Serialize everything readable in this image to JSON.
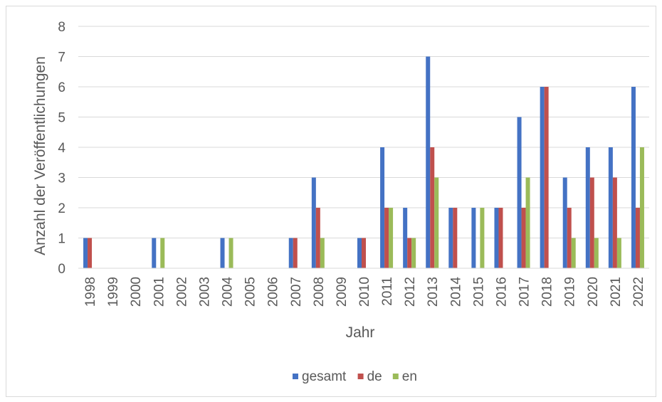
{
  "chart_data": {
    "type": "bar",
    "title": "",
    "xlabel": "Jahr",
    "ylabel": "Anzahl der Veröffentlichungen",
    "ylim": [
      0,
      8
    ],
    "yticks": [
      0,
      1,
      2,
      3,
      4,
      5,
      6,
      7,
      8
    ],
    "grid": true,
    "legend_position": "bottom",
    "categories": [
      "1998",
      "1999",
      "2000",
      "2001",
      "2002",
      "2003",
      "2004",
      "2005",
      "2006",
      "2007",
      "2008",
      "2009",
      "2010",
      "2011",
      "2012",
      "2013",
      "2014",
      "2015",
      "2016",
      "2017",
      "2018",
      "2019",
      "2020",
      "2021",
      "2022"
    ],
    "series": [
      {
        "name": "gesamt",
        "color": "#4472c4",
        "values": [
          1,
          0,
          0,
          1,
          0,
          0,
          1,
          0,
          0,
          1,
          3,
          0,
          1,
          4,
          2,
          7,
          2,
          2,
          2,
          5,
          6,
          3,
          4,
          4,
          6
        ]
      },
      {
        "name": "de",
        "color": "#c0504d",
        "values": [
          1,
          0,
          0,
          0,
          0,
          0,
          0,
          0,
          0,
          1,
          2,
          0,
          1,
          2,
          1,
          4,
          2,
          0,
          2,
          2,
          6,
          2,
          3,
          3,
          2
        ]
      },
      {
        "name": "en",
        "color": "#9bbb59",
        "values": [
          0,
          0,
          0,
          1,
          0,
          0,
          1,
          0,
          0,
          0,
          1,
          0,
          0,
          2,
          1,
          3,
          0,
          2,
          0,
          3,
          0,
          1,
          1,
          1,
          4
        ]
      }
    ]
  }
}
